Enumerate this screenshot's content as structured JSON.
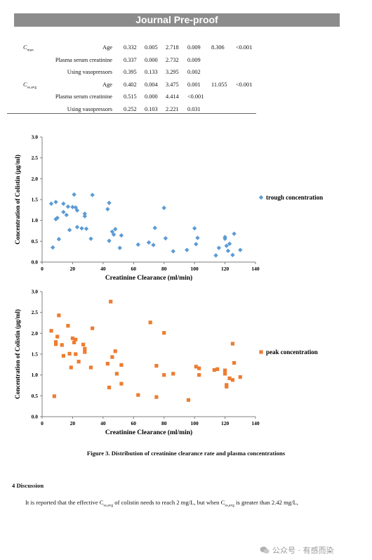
{
  "banner": "Journal Pre-proof",
  "table": {
    "groups": [
      {
        "symbol": "C",
        "symbol_sub": "max",
        "rows": [
          {
            "name": "Age",
            "v": [
              "0.332",
              "0.005",
              "2.718",
              "0.009",
              "8.306",
              "<0.001"
            ]
          },
          {
            "name": "Plasma serum creatinine",
            "v": [
              "0.337",
              "0.000",
              "2.732",
              "0.009",
              "",
              ""
            ]
          },
          {
            "name": "Using vasopressors",
            "v": [
              "0.395",
              "0.133",
              "3.295",
              "0.002",
              "",
              ""
            ]
          }
        ]
      },
      {
        "symbol": "C",
        "symbol_sub": "ss,avg",
        "rows": [
          {
            "name": "Age",
            "v": [
              "0.402",
              "0.004",
              "3.475",
              "0.001",
              "11.055",
              "<0.001"
            ]
          },
          {
            "name": "Plasma serum creatinine",
            "v": [
              "0.515",
              "0.000",
              "4.414",
              "<0.001",
              "",
              ""
            ]
          },
          {
            "name": "Using vasopressors",
            "v": [
              "0.252",
              "0.103",
              "2.221",
              "0.031",
              "",
              ""
            ]
          }
        ]
      }
    ]
  },
  "chart_data": [
    {
      "type": "scatter",
      "xlabel": "Creatinine Clearance (ml/min)",
      "ylabel": "Concentration of Colistin (μg/ml)",
      "xlim": [
        0,
        140
      ],
      "ylim": [
        0,
        3.0
      ],
      "xticks": [
        "0",
        "20",
        "40",
        "60",
        "80",
        "100",
        "120",
        "140"
      ],
      "yticks": [
        "0.0",
        "0.5",
        "1.0",
        "1.5",
        "2.0",
        "2.5",
        "3.0"
      ],
      "grid": false,
      "legend_position": "right",
      "series": [
        {
          "name": "trough concentration",
          "color": "#5b9bd5",
          "marker": "diamond",
          "x": [
            6,
            7,
            9,
            9,
            10,
            11,
            14,
            14,
            16,
            17,
            18,
            20,
            21,
            22,
            23,
            23,
            26,
            28,
            28,
            29,
            32,
            33,
            43,
            44,
            44,
            46,
            47,
            48,
            51,
            52,
            63,
            70,
            73,
            74,
            80,
            81,
            86,
            95,
            100,
            101,
            102,
            114,
            116,
            120,
            120,
            121,
            122,
            123,
            125,
            126,
            130
          ],
          "y": [
            1.4,
            0.35,
            1.44,
            1.03,
            1.06,
            0.55,
            1.4,
            1.2,
            1.13,
            1.33,
            0.77,
            1.32,
            1.62,
            1.31,
            1.24,
            0.84,
            0.81,
            1.16,
            1.1,
            0.8,
            0.56,
            1.61,
            1.27,
            0.51,
            1.42,
            0.73,
            0.66,
            0.79,
            0.34,
            0.64,
            0.42,
            0.47,
            0.41,
            0.82,
            1.3,
            0.57,
            0.26,
            0.29,
            0.81,
            0.43,
            0.58,
            0.16,
            0.34,
            0.6,
            0.56,
            0.39,
            0.27,
            0.44,
            0.17,
            0.68,
            0.29
          ]
        }
      ]
    },
    {
      "type": "scatter",
      "xlabel": "Creatinine Clearance (ml/min)",
      "ylabel": "Concentration of Colistin (μg/ml)",
      "xlim": [
        0,
        140
      ],
      "ylim": [
        0,
        3.0
      ],
      "xticks": [
        "0",
        "20",
        "40",
        "60",
        "80",
        "100",
        "120",
        "140"
      ],
      "yticks": [
        "0.0",
        "0.5",
        "1.0",
        "1.5",
        "2.0",
        "2.5",
        "3.0"
      ],
      "grid": false,
      "legend_position": "right",
      "series": [
        {
          "name": "peak concentration",
          "color": "#ed7d31",
          "marker": "square",
          "x": [
            6,
            8,
            9,
            9,
            10,
            11,
            13,
            14,
            17,
            18,
            19,
            20,
            21,
            22,
            22,
            24,
            27,
            28,
            28,
            32,
            33,
            43,
            44,
            45,
            46,
            48,
            49,
            52,
            52,
            63,
            71,
            75,
            75,
            80,
            80,
            86,
            96,
            101,
            103,
            103,
            113,
            115,
            120,
            120,
            121,
            121,
            123,
            125,
            125,
            126,
            130
          ],
          "y": [
            2.06,
            0.49,
            1.74,
            1.79,
            1.92,
            2.43,
            1.72,
            1.46,
            2.18,
            1.51,
            1.18,
            1.88,
            1.78,
            1.85,
            1.5,
            1.32,
            1.73,
            1.63,
            1.55,
            1.18,
            2.12,
            1.27,
            0.7,
            2.76,
            1.43,
            1.57,
            1.03,
            0.79,
            1.24,
            0.52,
            2.26,
            0.47,
            1.22,
            2.01,
            1.0,
            1.03,
            0.4,
            1.2,
            1.16,
            1.0,
            1.12,
            1.14,
            1.11,
            1.03,
            0.76,
            0.72,
            0.92,
            0.88,
            1.75,
            1.29,
            0.95
          ]
        }
      ]
    }
  ],
  "caption": "Figure 3. Distribution of creatinine clearance rate and plasma concentrations",
  "heading": "4 Discussion",
  "paragraph": {
    "part1": "It is reported that the effective C",
    "sub1": "ss,avg",
    "part2": " of colistin needs to reach 2 mg/L, but when C",
    "sub2": "ss,avg",
    "part3": " is greater than 2.42 mg/L,"
  },
  "watermark": "公众号 · 有感而染"
}
